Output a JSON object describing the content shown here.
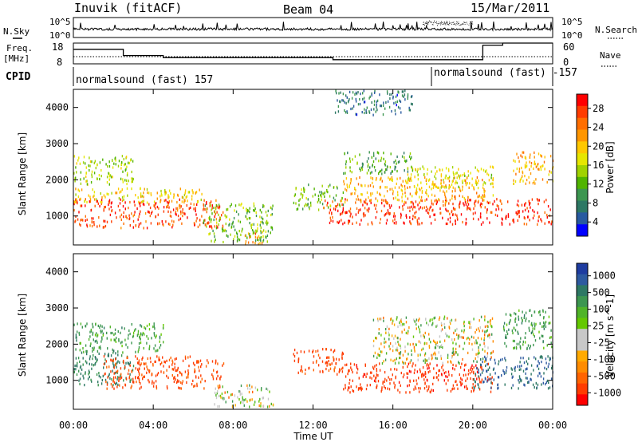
{
  "header": {
    "station": "Inuvik (fitACF)",
    "beam": "Beam 04",
    "date": "15/Mar/2011"
  },
  "noise_panel": {
    "left_label": "N.Sky",
    "right_label": "N.Search",
    "left_ticks": [
      "10^5",
      "10^0"
    ],
    "right_ticks": [
      "10^5",
      "10^0"
    ]
  },
  "freq_panel": {
    "left_label_1": "Freq.",
    "left_label_2": "[MHz]",
    "right_label": "Nave",
    "left_ticks": [
      "18",
      "8"
    ],
    "right_ticks": [
      "60",
      "0"
    ]
  },
  "cpid": {
    "label": "CPID",
    "segments": [
      "normalsound (fast) 157",
      "normalsound (fast) -157"
    ]
  },
  "axes": {
    "xlabel": "Time UT",
    "ylabel": "Slant Range [km]",
    "xticks": [
      "00:00",
      "04:00",
      "08:00",
      "12:00",
      "16:00",
      "20:00",
      "00:00"
    ],
    "yticks": [
      "1000",
      "2000",
      "3000",
      "4000"
    ]
  },
  "power_colorbar": {
    "label": "Power [dB]",
    "ticks": [
      "28",
      "24",
      "20",
      "16",
      "12",
      "8",
      "4"
    ],
    "colors": [
      "#ff0000",
      "#ff3c00",
      "#ff6e00",
      "#ff9600",
      "#ffc800",
      "#e6e600",
      "#a0d200",
      "#50b400",
      "#3c9650",
      "#2d7864",
      "#285aa0",
      "#0000ff"
    ]
  },
  "velocity_colorbar": {
    "label": "Velocity [m s^-1]",
    "ticks": [
      "1000",
      "500",
      "100",
      "25",
      "-25",
      "-100",
      "-500",
      "-1000"
    ],
    "colors": [
      "#1e3ca0",
      "#2d5aa0",
      "#2d7864",
      "#3c9650",
      "#50b428",
      "#64c800",
      "#c8c8c8",
      "#c8c8c8",
      "#ffaa00",
      "#ff8c00",
      "#ff6400",
      "#ff3c00",
      "#ff0000"
    ]
  },
  "chart_data": [
    {
      "type": "line",
      "title": "N.Sky / N.Search",
      "x": [
        "00:00",
        "04:00",
        "08:00",
        "12:00",
        "16:00",
        "20:00",
        "24:00"
      ],
      "series": [
        {
          "name": "N.Sky",
          "values": [
            200,
            300,
            300,
            250,
            300,
            400,
            350
          ]
        }
      ]
    },
    {
      "type": "line",
      "title": "Freq. / Nave",
      "x": [
        "00:00",
        "02:30",
        "04:30",
        "08:30",
        "10:00",
        "13:00",
        "18:00",
        "20:30",
        "21:30",
        "24:00"
      ],
      "series": [
        {
          "name": "Freq.",
          "values": [
            15,
            12,
            11,
            11,
            11,
            10,
            10,
            17,
            18,
            18
          ]
        }
      ],
      "ylim": [
        8,
        18
      ]
    },
    {
      "type": "heatmap",
      "title": "Power [dB]",
      "xlabel": "Time UT",
      "ylabel": "Slant Range [km]",
      "xlim": [
        0,
        24
      ],
      "ylim": [
        200,
        4500
      ],
      "clim": [
        0,
        30
      ],
      "blobs": [
        {
          "t0": 0.0,
          "t1": 7.5,
          "r0": 700,
          "r1": 1500,
          "v": 26
        },
        {
          "t0": 0.0,
          "t1": 6.5,
          "r0": 1400,
          "r1": 1800,
          "v": 18
        },
        {
          "t0": 0.0,
          "t1": 3.0,
          "r0": 1900,
          "r1": 2700,
          "v": 14
        },
        {
          "t0": 6.5,
          "t1": 10.0,
          "r0": 300,
          "r1": 1400,
          "v": 12
        },
        {
          "t0": 8.5,
          "t1": 9.5,
          "r0": 250,
          "r1": 600,
          "v": 22
        },
        {
          "t0": 11.0,
          "t1": 13.5,
          "r0": 1200,
          "r1": 1900,
          "v": 12
        },
        {
          "t0": 12.5,
          "t1": 24.0,
          "r0": 800,
          "r1": 1500,
          "v": 27
        },
        {
          "t0": 13.5,
          "t1": 21.0,
          "r0": 1400,
          "r1": 2100,
          "v": 20
        },
        {
          "t0": 16.5,
          "t1": 21.0,
          "r0": 1800,
          "r1": 2400,
          "v": 16
        },
        {
          "t0": 13.5,
          "t1": 17.0,
          "r0": 2200,
          "r1": 2800,
          "v": 10
        },
        {
          "t0": 22.0,
          "t1": 24.0,
          "r0": 1900,
          "r1": 2800,
          "v": 20
        },
        {
          "t0": 13.0,
          "t1": 17.0,
          "r0": 3800,
          "r1": 4500,
          "v": 6
        }
      ]
    },
    {
      "type": "heatmap",
      "title": "Velocity [m s^-1]",
      "xlabel": "Time UT",
      "ylabel": "Slant Range [km]",
      "xlim": [
        0,
        24
      ],
      "ylim": [
        200,
        4500
      ],
      "blobs": [
        {
          "t0": 0.0,
          "t1": 3.0,
          "r0": 900,
          "r1": 1800,
          "v": 300
        },
        {
          "t0": 1.5,
          "t1": 7.5,
          "r0": 800,
          "r1": 1700,
          "v": -300
        },
        {
          "t0": 0.0,
          "t1": 4.5,
          "r0": 1800,
          "r1": 2600,
          "v": 150
        },
        {
          "t0": 7.0,
          "t1": 10.0,
          "r0": 300,
          "r1": 900,
          "v": 0
        },
        {
          "t0": 11.0,
          "t1": 13.5,
          "r0": 1200,
          "r1": 1900,
          "v": -300
        },
        {
          "t0": 13.5,
          "t1": 21.0,
          "r0": 700,
          "r1": 1500,
          "v": -400
        },
        {
          "t0": 15.0,
          "t1": 21.0,
          "r0": 1500,
          "r1": 2800,
          "v": 0
        },
        {
          "t0": 20.0,
          "t1": 24.0,
          "r0": 800,
          "r1": 1700,
          "v": 500
        },
        {
          "t0": 21.5,
          "t1": 24.0,
          "r0": 1900,
          "r1": 3000,
          "v": 150
        }
      ]
    }
  ]
}
